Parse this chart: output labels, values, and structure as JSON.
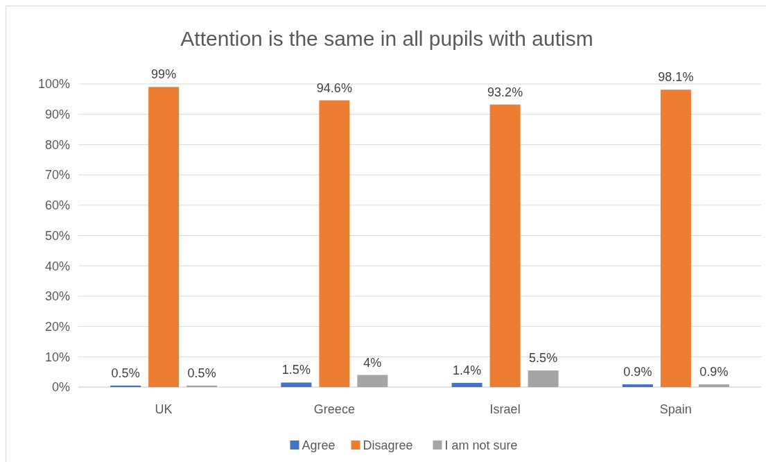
{
  "chart_data": {
    "type": "bar",
    "title": "Attention is the same in all pupils with autism",
    "categories": [
      "UK",
      "Greece",
      "Israel",
      "Spain"
    ],
    "series": [
      {
        "name": "Agree",
        "color": "#4472c4",
        "values": [
          0.5,
          1.5,
          1.4,
          0.9
        ],
        "value_labels": [
          "0.5%",
          "1.5%",
          "1.4%",
          "0.9%"
        ]
      },
      {
        "name": "Disagree",
        "color": "#ed7d31",
        "values": [
          99,
          94.6,
          93.2,
          98.1
        ],
        "value_labels": [
          "99%",
          "94.6%",
          "93.2%",
          "98.1%"
        ]
      },
      {
        "name": "I am not sure",
        "color": "#a5a5a5",
        "values": [
          0.5,
          4,
          5.5,
          0.9
        ],
        "value_labels": [
          "0.5%",
          "4%",
          "5.5%",
          "0.9%"
        ]
      }
    ],
    "ylim": [
      0,
      100
    ],
    "yticks": [
      {
        "value": 0,
        "label": "0%"
      },
      {
        "value": 10,
        "label": "10%"
      },
      {
        "value": 20,
        "label": "20%"
      },
      {
        "value": 30,
        "label": "30%"
      },
      {
        "value": 40,
        "label": "40%"
      },
      {
        "value": 50,
        "label": "50%"
      },
      {
        "value": 60,
        "label": "60%"
      },
      {
        "value": 70,
        "label": "70%"
      },
      {
        "value": 80,
        "label": "80%"
      },
      {
        "value": 90,
        "label": "90%"
      },
      {
        "value": 100,
        "label": "100%"
      }
    ],
    "grid": "y",
    "legend": "bottom"
  }
}
